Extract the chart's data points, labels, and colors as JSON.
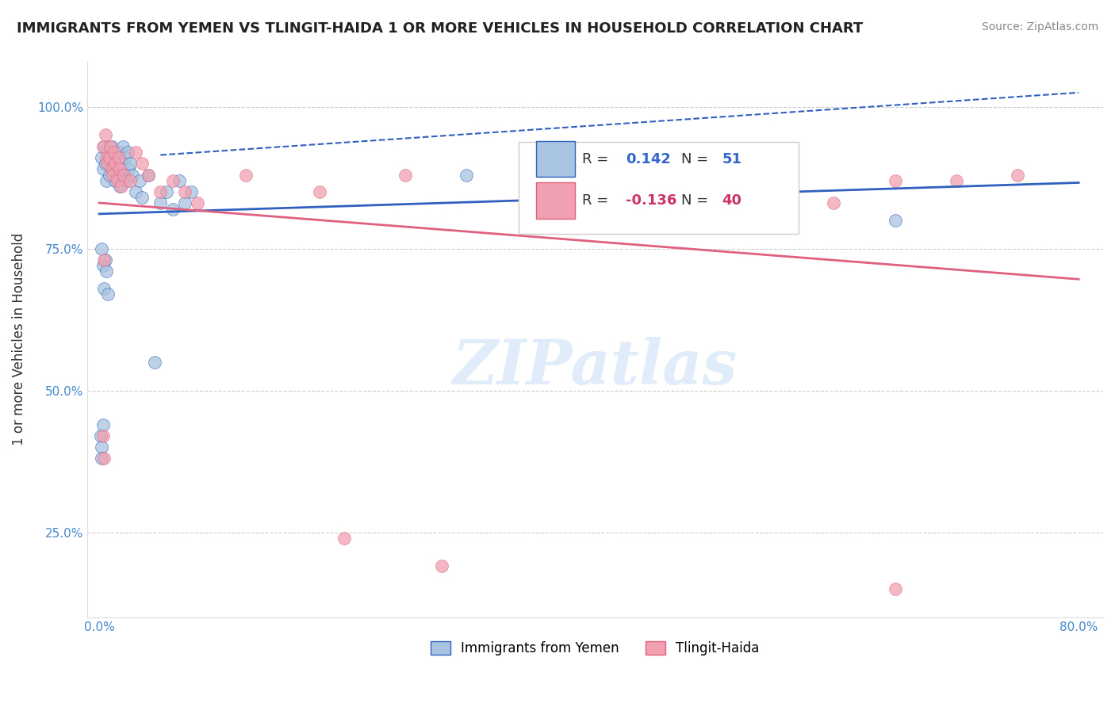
{
  "title": "IMMIGRANTS FROM YEMEN VS TLINGIT-HAIDA 1 OR MORE VEHICLES IN HOUSEHOLD CORRELATION CHART",
  "source": "Source: ZipAtlas.com",
  "ylabel": "1 or more Vehicles in Household",
  "xlim": [
    0.0,
    0.8
  ],
  "ylim": [
    0.1,
    1.08
  ],
  "xticks": [
    0.0,
    0.1,
    0.2,
    0.3,
    0.4,
    0.5,
    0.6,
    0.7,
    0.8
  ],
  "xticklabels": [
    "0.0%",
    "",
    "",
    "",
    "",
    "",
    "",
    "",
    "80.0%"
  ],
  "yticks": [
    0.25,
    0.5,
    0.75,
    1.0
  ],
  "yticklabels": [
    "25.0%",
    "50.0%",
    "75.0%",
    "100.0%"
  ],
  "legend_r_blue": "0.142",
  "legend_n_blue": "51",
  "legend_r_pink": "-0.136",
  "legend_n_pink": "40",
  "blue_color": "#a8c4e0",
  "pink_color": "#f0a0b0",
  "blue_line_color": "#3060c0",
  "pink_line_color": "#e06080",
  "blue_x": [
    0.002,
    0.003,
    0.004,
    0.005,
    0.006,
    0.007,
    0.008,
    0.009,
    0.01,
    0.011,
    0.012,
    0.013,
    0.014,
    0.015,
    0.016,
    0.017,
    0.018,
    0.019,
    0.02,
    0.021,
    0.022,
    0.023,
    0.024,
    0.025,
    0.027,
    0.03,
    0.033,
    0.035,
    0.04,
    0.045,
    0.05,
    0.055,
    0.06,
    0.065,
    0.07,
    0.075,
    0.002,
    0.003,
    0.004,
    0.005,
    0.006,
    0.007,
    0.001,
    0.002,
    0.003,
    0.002,
    0.3,
    0.35,
    0.45,
    0.55,
    0.65
  ],
  "blue_y": [
    0.91,
    0.89,
    0.93,
    0.9,
    0.87,
    0.92,
    0.88,
    0.91,
    0.93,
    0.89,
    0.9,
    0.87,
    0.91,
    0.88,
    0.92,
    0.86,
    0.9,
    0.93,
    0.88,
    0.91,
    0.87,
    0.92,
    0.89,
    0.9,
    0.88,
    0.85,
    0.87,
    0.84,
    0.88,
    0.55,
    0.83,
    0.85,
    0.82,
    0.87,
    0.83,
    0.85,
    0.75,
    0.72,
    0.68,
    0.73,
    0.71,
    0.67,
    0.42,
    0.4,
    0.44,
    0.38,
    0.88,
    0.85,
    0.84,
    0.83,
    0.8
  ],
  "pink_x": [
    0.003,
    0.005,
    0.006,
    0.007,
    0.008,
    0.009,
    0.01,
    0.011,
    0.012,
    0.013,
    0.015,
    0.016,
    0.017,
    0.018,
    0.02,
    0.025,
    0.03,
    0.035,
    0.04,
    0.05,
    0.06,
    0.07,
    0.08,
    0.12,
    0.18,
    0.25,
    0.35,
    0.45,
    0.5,
    0.55,
    0.6,
    0.65,
    0.7,
    0.75,
    0.003,
    0.004,
    0.2,
    0.28,
    0.65,
    0.004
  ],
  "pink_y": [
    0.93,
    0.95,
    0.91,
    0.9,
    0.91,
    0.93,
    0.89,
    0.88,
    0.92,
    0.9,
    0.87,
    0.91,
    0.89,
    0.86,
    0.88,
    0.87,
    0.92,
    0.9,
    0.88,
    0.85,
    0.87,
    0.85,
    0.83,
    0.88,
    0.85,
    0.88,
    0.88,
    0.83,
    0.83,
    0.87,
    0.83,
    0.87,
    0.87,
    0.88,
    0.42,
    0.38,
    0.24,
    0.19,
    0.15,
    0.73
  ]
}
